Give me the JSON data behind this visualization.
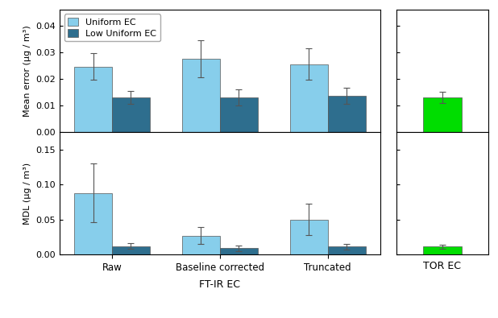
{
  "categories": [
    "Raw",
    "Baseline corrected",
    "Truncated"
  ],
  "tor_label": "TOR EC",
  "ftir_label": "FT-IR EC",
  "mean_error_uniform": [
    0.0245,
    0.0275,
    0.0255
  ],
  "mean_error_uniform_err": [
    0.005,
    0.007,
    0.006
  ],
  "mean_error_low_uniform": [
    0.013,
    0.013,
    0.0135
  ],
  "mean_error_low_uniform_err": [
    0.0025,
    0.003,
    0.003
  ],
  "mean_error_tor": 0.013,
  "mean_error_tor_err": 0.002,
  "mdl_uniform": [
    0.088,
    0.027,
    0.05
  ],
  "mdl_uniform_err": [
    0.042,
    0.012,
    0.022
  ],
  "mdl_low_uniform": [
    0.012,
    0.009,
    0.011
  ],
  "mdl_low_uniform_err": [
    0.004,
    0.004,
    0.004
  ],
  "mdl_tor": 0.011,
  "mdl_tor_err": 0.003,
  "color_uniform": "#87CEEB",
  "color_low_uniform": "#2E6E8E",
  "color_tor": "#00DD00",
  "bar_width": 0.35,
  "mean_error_ylim": [
    0.0,
    0.046
  ],
  "mean_error_yticks": [
    0.0,
    0.01,
    0.02,
    0.03,
    0.04
  ],
  "mdl_ylim": [
    0.0,
    0.175
  ],
  "mdl_yticks": [
    0.0,
    0.05,
    0.1,
    0.15
  ],
  "ylabel_mean": "Mean error (µg / m³)",
  "ylabel_mdl": "MDL (µg / m³)",
  "legend_labels": [
    "Uniform EC",
    "Low Uniform EC"
  ],
  "background_color": "#ffffff"
}
